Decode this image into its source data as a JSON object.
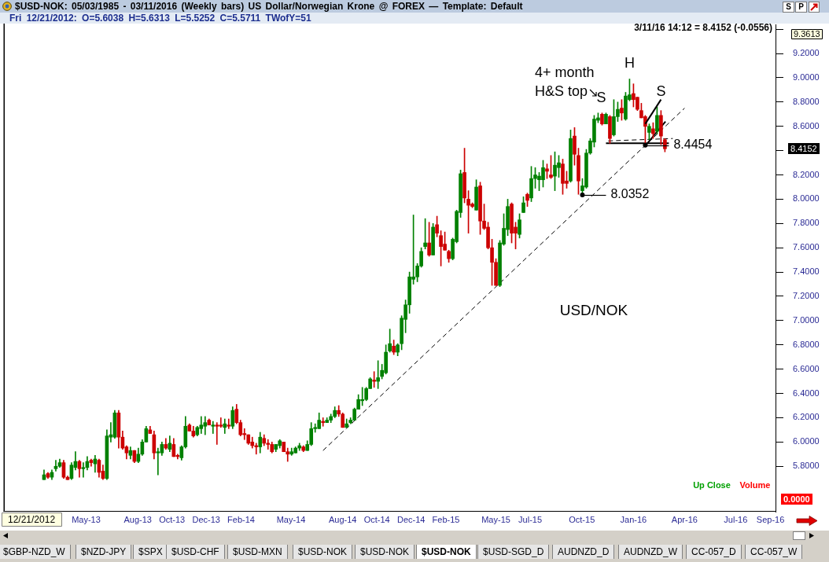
{
  "chart_data": [
    {
      "type": "candlestick",
      "title": "$USD-NOK: 05/03/1985 - 03/11/2016 (Weekly bars) US Dollar/Norwegian Krone @ FOREX — Template: Default",
      "subtitle": "Fri 12/21/2012: O=5.6038 H=5.6313 L=5.5252 C=5.5711 TWofY=51",
      "x": [
        "2013-03-01",
        "2013-03-08",
        "2013-03-15",
        "2013-03-22",
        "2013-03-29",
        "2013-04-05",
        "2013-04-12",
        "2013-04-19",
        "2013-04-26",
        "2013-05-03",
        "2013-05-10",
        "2013-05-17",
        "2013-05-24",
        "2013-05-31",
        "2013-06-07",
        "2013-06-14",
        "2013-06-21",
        "2013-06-28",
        "2013-07-05",
        "2013-07-12",
        "2013-07-19",
        "2013-07-26",
        "2013-08-02",
        "2013-08-09",
        "2013-08-16",
        "2013-08-23",
        "2013-08-30",
        "2013-09-06",
        "2013-09-13",
        "2013-09-20",
        "2013-09-27",
        "2013-10-04",
        "2013-10-11",
        "2013-10-18",
        "2013-10-25",
        "2013-11-01",
        "2013-11-08",
        "2013-11-15",
        "2013-11-22",
        "2013-11-29",
        "2013-12-06",
        "2013-12-13",
        "2013-12-20",
        "2013-12-27",
        "2014-01-03",
        "2014-01-10",
        "2014-01-17",
        "2014-01-24",
        "2014-01-31",
        "2014-02-07",
        "2014-02-14",
        "2014-02-21",
        "2014-02-28",
        "2014-03-07",
        "2014-03-14",
        "2014-03-21",
        "2014-03-28",
        "2014-04-04",
        "2014-04-11",
        "2014-04-18",
        "2014-04-25",
        "2014-05-02",
        "2014-05-09",
        "2014-05-16",
        "2014-05-23",
        "2014-05-30",
        "2014-06-06",
        "2014-06-13",
        "2014-06-20",
        "2014-06-27",
        "2014-07-04",
        "2014-07-11",
        "2014-07-18",
        "2014-07-25",
        "2014-08-01",
        "2014-08-08",
        "2014-08-15",
        "2014-08-22",
        "2014-08-29",
        "2014-09-05",
        "2014-09-12",
        "2014-09-19",
        "2014-09-26",
        "2014-10-03",
        "2014-10-10",
        "2014-10-17",
        "2014-10-24",
        "2014-10-31",
        "2014-11-07",
        "2014-11-14",
        "2014-11-21",
        "2014-11-28",
        "2014-12-05",
        "2014-12-12",
        "2014-12-19",
        "2014-12-26",
        "2015-01-02",
        "2015-01-09",
        "2015-01-16",
        "2015-01-23",
        "2015-01-30",
        "2015-02-06",
        "2015-02-13",
        "2015-02-20",
        "2015-02-27",
        "2015-03-06",
        "2015-03-13",
        "2015-03-20",
        "2015-03-27",
        "2015-04-03",
        "2015-04-10",
        "2015-04-17",
        "2015-04-24",
        "2015-05-01",
        "2015-05-08",
        "2015-05-15",
        "2015-05-22",
        "2015-05-29",
        "2015-06-05",
        "2015-06-12",
        "2015-06-19",
        "2015-06-26",
        "2015-07-03",
        "2015-07-10",
        "2015-07-17",
        "2015-07-24",
        "2015-07-31",
        "2015-08-07",
        "2015-08-14",
        "2015-08-21",
        "2015-08-28",
        "2015-09-04",
        "2015-09-11",
        "2015-09-18",
        "2015-09-25",
        "2015-10-02",
        "2015-10-09",
        "2015-10-16",
        "2015-10-23",
        "2015-10-30",
        "2015-11-06",
        "2015-11-13",
        "2015-11-20",
        "2015-11-27",
        "2015-12-04",
        "2015-12-11",
        "2015-12-18",
        "2015-12-25",
        "2016-01-01",
        "2016-01-08",
        "2016-01-15",
        "2016-01-22",
        "2016-01-29",
        "2016-02-05",
        "2016-02-12",
        "2016-02-19",
        "2016-02-26",
        "2016-03-04",
        "2016-03-11"
      ],
      "ohlc": [
        [
          5.69,
          5.77,
          5.69,
          5.73
        ],
        [
          5.74,
          5.75,
          5.7,
          5.71
        ],
        [
          5.71,
          5.77,
          5.69,
          5.75
        ],
        [
          5.78,
          5.85,
          5.76,
          5.8
        ],
        [
          5.8,
          5.86,
          5.79,
          5.83
        ],
        [
          5.83,
          5.85,
          5.7,
          5.71
        ],
        [
          5.71,
          5.72,
          5.69,
          5.69
        ],
        [
          5.7,
          5.83,
          5.69,
          5.81
        ],
        [
          5.79,
          5.92,
          5.77,
          5.84
        ],
        [
          5.84,
          5.85,
          5.71,
          5.78
        ],
        [
          5.78,
          5.83,
          5.71,
          5.79
        ],
        [
          5.79,
          5.88,
          5.77,
          5.84
        ],
        [
          5.85,
          5.86,
          5.8,
          5.83
        ],
        [
          5.82,
          5.89,
          5.75,
          5.86
        ],
        [
          5.85,
          5.86,
          5.71,
          5.75
        ],
        [
          5.76,
          5.81,
          5.69,
          5.7
        ],
        [
          5.7,
          6.1,
          5.69,
          6.05
        ],
        [
          6.04,
          6.16,
          6.0,
          6.06
        ],
        [
          6.04,
          6.26,
          6.03,
          6.24
        ],
        [
          6.24,
          6.26,
          5.95,
          6.04
        ],
        [
          6.04,
          6.09,
          5.94,
          5.95
        ],
        [
          5.96,
          5.97,
          5.86,
          5.91
        ],
        [
          5.89,
          5.96,
          5.86,
          5.93
        ],
        [
          5.93,
          5.93,
          5.83,
          5.84
        ],
        [
          5.84,
          5.95,
          5.83,
          5.9
        ],
        [
          5.9,
          6.02,
          5.89,
          6.0
        ],
        [
          6.0,
          6.13,
          6.0,
          6.11
        ],
        [
          6.1,
          6.13,
          6.07,
          6.07
        ],
        [
          6.06,
          6.09,
          5.86,
          5.91
        ],
        [
          5.91,
          5.95,
          5.73,
          5.92
        ],
        [
          5.91,
          6.0,
          5.89,
          5.98
        ],
        [
          5.98,
          6.03,
          5.94,
          5.95
        ],
        [
          5.94,
          6.05,
          5.92,
          5.99
        ],
        [
          5.98,
          6.03,
          5.88,
          5.88
        ],
        [
          5.89,
          5.9,
          5.86,
          5.88
        ],
        [
          5.87,
          5.97,
          5.85,
          5.96
        ],
        [
          5.96,
          6.21,
          5.95,
          6.13
        ],
        [
          6.14,
          6.15,
          6.09,
          6.09
        ],
        [
          6.09,
          6.13,
          6.04,
          6.05
        ],
        [
          6.06,
          6.13,
          6.05,
          6.12
        ],
        [
          6.11,
          6.21,
          6.07,
          6.14
        ],
        [
          6.13,
          6.21,
          6.06,
          6.16
        ],
        [
          6.18,
          6.19,
          6.14,
          6.14
        ],
        [
          6.13,
          6.17,
          6.07,
          6.14
        ],
        [
          6.14,
          6.16,
          5.98,
          6.13
        ],
        [
          6.14,
          6.2,
          6.12,
          6.13
        ],
        [
          6.12,
          6.19,
          6.07,
          6.15
        ],
        [
          6.14,
          6.19,
          6.11,
          6.13
        ],
        [
          6.13,
          6.29,
          6.11,
          6.26
        ],
        [
          6.27,
          6.31,
          6.15,
          6.16
        ],
        [
          6.16,
          6.18,
          6.05,
          6.06
        ],
        [
          6.07,
          6.11,
          6.02,
          6.06
        ],
        [
          6.06,
          6.06,
          5.98,
          5.99
        ],
        [
          6.0,
          6.04,
          5.95,
          5.97
        ],
        [
          5.97,
          5.99,
          5.9,
          5.96
        ],
        [
          5.96,
          6.08,
          5.91,
          6.04
        ],
        [
          6.03,
          6.06,
          5.97,
          5.99
        ],
        [
          5.99,
          6.02,
          5.94,
          5.98
        ],
        [
          5.98,
          6.0,
          5.91,
          5.92
        ],
        [
          5.94,
          5.98,
          5.92,
          5.98
        ],
        [
          5.97,
          6.02,
          5.95,
          6.01
        ],
        [
          6.0,
          6.0,
          5.92,
          5.92
        ],
        [
          5.92,
          5.95,
          5.84,
          5.9
        ],
        [
          5.9,
          5.95,
          5.89,
          5.92
        ],
        [
          5.91,
          5.96,
          5.91,
          5.95
        ],
        [
          5.95,
          5.99,
          5.93,
          5.97
        ],
        [
          5.96,
          5.97,
          5.92,
          5.93
        ],
        [
          5.93,
          6.01,
          5.93,
          5.98
        ],
        [
          5.98,
          6.16,
          5.97,
          6.11
        ],
        [
          6.11,
          6.15,
          6.08,
          6.12
        ],
        [
          6.11,
          6.24,
          6.11,
          6.18
        ],
        [
          6.17,
          6.2,
          6.13,
          6.16
        ],
        [
          6.16,
          6.2,
          6.16,
          6.18
        ],
        [
          6.18,
          6.23,
          6.16,
          6.21
        ],
        [
          6.21,
          6.29,
          6.2,
          6.26
        ],
        [
          6.26,
          6.3,
          6.21,
          6.23
        ],
        [
          6.23,
          6.24,
          6.12,
          6.12
        ],
        [
          6.12,
          6.19,
          6.12,
          6.15
        ],
        [
          6.16,
          6.2,
          6.15,
          6.18
        ],
        [
          6.18,
          6.28,
          6.18,
          6.27
        ],
        [
          6.27,
          6.39,
          6.27,
          6.35
        ],
        [
          6.34,
          6.45,
          6.3,
          6.35
        ],
        [
          6.35,
          6.45,
          6.34,
          6.44
        ],
        [
          6.44,
          6.53,
          6.44,
          6.52
        ],
        [
          6.51,
          6.58,
          6.45,
          6.5
        ],
        [
          6.5,
          6.67,
          6.44,
          6.53
        ],
        [
          6.54,
          6.64,
          6.52,
          6.59
        ],
        [
          6.57,
          6.8,
          6.56,
          6.74
        ],
        [
          6.75,
          6.93,
          6.74,
          6.81
        ],
        [
          6.79,
          6.84,
          6.72,
          6.74
        ],
        [
          6.74,
          6.81,
          6.71,
          6.8
        ],
        [
          6.81,
          7.04,
          6.76,
          7.02
        ],
        [
          7.01,
          7.17,
          6.9,
          7.13
        ],
        [
          7.13,
          7.4,
          7.06,
          7.36
        ],
        [
          7.34,
          7.87,
          7.3,
          7.36
        ],
        [
          7.36,
          7.47,
          7.32,
          7.45
        ],
        [
          7.45,
          7.6,
          7.44,
          7.57
        ],
        [
          7.61,
          7.84,
          7.59,
          7.64
        ],
        [
          7.64,
          7.81,
          7.53,
          7.54
        ],
        [
          7.54,
          7.8,
          7.54,
          7.77
        ],
        [
          7.79,
          7.86,
          7.69,
          7.72
        ],
        [
          7.7,
          7.74,
          7.45,
          7.61
        ],
        [
          7.63,
          7.73,
          7.58,
          7.58
        ],
        [
          7.57,
          7.58,
          7.48,
          7.51
        ],
        [
          7.51,
          7.68,
          7.5,
          7.67
        ],
        [
          7.65,
          7.91,
          7.64,
          7.9
        ],
        [
          7.89,
          8.24,
          7.85,
          8.21
        ],
        [
          8.22,
          8.42,
          7.97,
          8.01
        ],
        [
          8.0,
          8.07,
          7.72,
          7.95
        ],
        [
          7.96,
          7.97,
          7.93,
          7.94
        ],
        [
          7.91,
          8.16,
          7.91,
          8.1
        ],
        [
          8.11,
          8.14,
          7.71,
          7.82
        ],
        [
          7.82,
          7.96,
          7.75,
          7.76
        ],
        [
          7.77,
          7.81,
          7.59,
          7.6
        ],
        [
          7.6,
          7.67,
          7.29,
          7.48
        ],
        [
          7.48,
          7.51,
          7.29,
          7.29
        ],
        [
          7.29,
          7.66,
          7.28,
          7.64
        ],
        [
          7.63,
          7.88,
          7.62,
          7.76
        ],
        [
          7.75,
          8.0,
          7.7,
          7.94
        ],
        [
          7.96,
          7.97,
          7.64,
          7.72
        ],
        [
          7.77,
          7.81,
          7.59,
          7.72
        ],
        [
          7.71,
          7.88,
          7.68,
          7.83
        ],
        [
          7.89,
          8.02,
          7.89,
          7.97
        ],
        [
          8.04,
          8.05,
          7.94,
          7.99
        ],
        [
          8.01,
          8.27,
          7.98,
          8.17
        ],
        [
          8.17,
          8.26,
          8.09,
          8.2
        ],
        [
          8.16,
          8.22,
          8.07,
          8.19
        ],
        [
          8.16,
          8.32,
          8.1,
          8.26
        ],
        [
          8.25,
          8.29,
          8.17,
          8.23
        ],
        [
          8.2,
          8.36,
          8.17,
          8.18
        ],
        [
          8.19,
          8.39,
          8.07,
          8.28
        ],
        [
          8.26,
          8.36,
          8.18,
          8.3
        ],
        [
          8.29,
          8.33,
          8.04,
          8.13
        ],
        [
          8.15,
          8.23,
          8.09,
          8.13
        ],
        [
          8.15,
          8.57,
          8.14,
          8.5
        ],
        [
          8.52,
          8.59,
          8.28,
          8.37
        ],
        [
          8.36,
          8.42,
          8.04,
          8.15
        ],
        [
          8.07,
          8.17,
          8.0352,
          8.11
        ],
        [
          8.1,
          8.41,
          8.09,
          8.38
        ],
        [
          8.38,
          8.5,
          8.37,
          8.48
        ],
        [
          8.47,
          8.69,
          8.43,
          8.66
        ],
        [
          8.65,
          8.71,
          8.63,
          8.67
        ],
        [
          8.7,
          8.71,
          8.61,
          8.62
        ],
        [
          8.62,
          8.71,
          8.62,
          8.7
        ],
        [
          8.68,
          8.69,
          8.46,
          8.5
        ],
        [
          8.53,
          8.82,
          8.52,
          8.68
        ],
        [
          8.68,
          8.8,
          8.64,
          8.74
        ],
        [
          8.75,
          8.82,
          8.65,
          8.71
        ],
        [
          8.66,
          8.88,
          8.65,
          8.85
        ],
        [
          8.82,
          8.99,
          8.81,
          8.86
        ],
        [
          8.87,
          8.95,
          8.76,
          8.82
        ],
        [
          8.84,
          8.84,
          8.73,
          8.74
        ],
        [
          8.73,
          8.79,
          8.67,
          8.67
        ],
        [
          8.68,
          8.69,
          8.4454,
          8.6
        ],
        [
          8.55,
          8.62,
          8.49,
          8.6
        ],
        [
          8.58,
          8.63,
          8.5,
          8.54
        ],
        [
          8.56,
          8.76,
          8.54,
          8.69
        ],
        [
          8.69,
          8.73,
          8.45,
          8.52
        ],
        [
          8.49,
          8.5,
          8.39,
          8.4152
        ]
      ],
      "colors": [
        "#008000",
        "#cc0000",
        "#008000",
        "#008000",
        "#008000",
        "#cc0000",
        "#cc0000",
        "#008000",
        "#008000",
        "#cc0000",
        "#008000",
        "#008000",
        "#cc0000",
        "#008000",
        "#cc0000",
        "#cc0000",
        "#008000",
        "#008000",
        "#008000",
        "#cc0000",
        "#cc0000",
        "#cc0000",
        "#008000",
        "#cc0000",
        "#008000",
        "#008000",
        "#008000",
        "#cc0000",
        "#cc0000",
        "#008000",
        "#008000",
        "#cc0000",
        "#008000",
        "#cc0000",
        "#cc0000",
        "#008000",
        "#008000",
        "#cc0000",
        "#cc0000",
        "#008000",
        "#008000",
        "#008000",
        "#cc0000",
        "#008000",
        "#cc0000",
        "#cc0000",
        "#008000",
        "#cc0000",
        "#008000",
        "#cc0000",
        "#cc0000",
        "#cc0000",
        "#cc0000",
        "#cc0000",
        "#cc0000",
        "#008000",
        "#cc0000",
        "#cc0000",
        "#cc0000",
        "#008000",
        "#008000",
        "#cc0000",
        "#cc0000",
        "#008000",
        "#008000",
        "#008000",
        "#cc0000",
        "#008000",
        "#008000",
        "#008000",
        "#008000",
        "#cc0000",
        "#008000",
        "#008000",
        "#008000",
        "#cc0000",
        "#cc0000",
        "#008000",
        "#008000",
        "#008000",
        "#008000",
        "#008000",
        "#008000",
        "#008000",
        "#cc0000",
        "#008000",
        "#008000",
        "#008000",
        "#008000",
        "#cc0000",
        "#008000",
        "#008000",
        "#008000",
        "#008000",
        "#008000",
        "#008000",
        "#008000",
        "#008000",
        "#cc0000",
        "#008000",
        "#cc0000",
        "#cc0000",
        "#cc0000",
        "#cc0000",
        "#008000",
        "#008000",
        "#008000",
        "#cc0000",
        "#cc0000",
        "#cc0000",
        "#008000",
        "#cc0000",
        "#cc0000",
        "#cc0000",
        "#cc0000",
        "#cc0000",
        "#008000",
        "#008000",
        "#008000",
        "#cc0000",
        "#cc0000",
        "#008000",
        "#008000",
        "#cc0000",
        "#008000",
        "#008000",
        "#008000",
        "#008000",
        "#cc0000",
        "#cc0000",
        "#008000",
        "#008000",
        "#cc0000",
        "#cc0000",
        "#008000",
        "#cc0000",
        "#cc0000",
        "#008000",
        "#008000",
        "#008000",
        "#008000",
        "#008000",
        "#cc0000",
        "#008000",
        "#cc0000",
        "#008000",
        "#008000",
        "#cc0000",
        "#008000",
        "#008000",
        "#cc0000",
        "#cc0000",
        "#cc0000",
        "#cc0000",
        "#008000",
        "#cc0000",
        "#008000",
        "#cc0000",
        "#cc0000"
      ],
      "series": [
        {
          "type": "line",
          "x": [
            "2014-07-11",
            "2016-04-15"
          ],
          "values": [
            5.93,
            8.75
          ],
          "color": "#000000",
          "line_style": "dashed"
        },
        {
          "type": "line",
          "x": [
            "2015-11-27",
            "2016-03-18"
          ],
          "values": [
            8.46,
            8.46
          ],
          "color": "#000000",
          "line_style": "solid"
        },
        {
          "type": "line",
          "x": [
            "2015-12-01",
            "2016-03-25"
          ],
          "values": [
            8.48,
            8.5
          ],
          "color": "#000000",
          "line_style": "dashed"
        },
        {
          "type": "line",
          "x": [
            "2016-02-07",
            "2016-03-12"
          ],
          "values": [
            8.45,
            8.64
          ],
          "color": "#000000",
          "line_style": "solid"
        }
      ],
      "xlim": [
        "2012-12-21",
        "2016-09-24"
      ],
      "ylim": [
        5.685,
        9.44
      ],
      "xticks": [
        {
          "value": "2013-05-15",
          "label": "May-13"
        },
        {
          "value": "2013-08-15",
          "label": "Aug-13"
        },
        {
          "value": "2013-10-15",
          "label": "Oct-13"
        },
        {
          "value": "2013-12-15",
          "label": "Dec-13"
        },
        {
          "value": "2014-02-15",
          "label": "Feb-14"
        },
        {
          "value": "2014-05-15",
          "label": "May-14"
        },
        {
          "value": "2014-08-15",
          "label": "Aug-14"
        },
        {
          "value": "2014-10-15",
          "label": "Oct-14"
        },
        {
          "value": "2014-12-15",
          "label": "Dec-14"
        },
        {
          "value": "2015-02-15",
          "label": "Feb-15"
        },
        {
          "value": "2015-05-15",
          "label": "May-15"
        },
        {
          "value": "2015-07-15",
          "label": "Jul-15"
        },
        {
          "value": "2015-10-15",
          "label": "Oct-15"
        },
        {
          "value": "2016-01-15",
          "label": "Jan-16"
        },
        {
          "value": "2016-04-15",
          "label": "Apr-16"
        },
        {
          "value": "2016-07-15",
          "label": "Jul-16"
        },
        {
          "value": "2016-09-15",
          "label": "Sep-16"
        }
      ],
      "yticks": [
        {
          "value": 5.8,
          "label": "5.8000"
        },
        {
          "value": 6.0,
          "label": "6.0000"
        },
        {
          "value": 6.2,
          "label": "6.2000"
        },
        {
          "value": 6.4,
          "label": "6.4000"
        },
        {
          "value": 6.6,
          "label": "6.6000"
        },
        {
          "value": 6.8,
          "label": "6.8000"
        },
        {
          "value": 7.0,
          "label": "7.0000"
        },
        {
          "value": 7.2,
          "label": "7.2000"
        },
        {
          "value": 7.4,
          "label": "7.4000"
        },
        {
          "value": 7.6,
          "label": "7.6000"
        },
        {
          "value": 7.8,
          "label": "7.8000"
        },
        {
          "value": 8.0,
          "label": "8.0000"
        },
        {
          "value": 8.2,
          "label": "8.2000"
        },
        {
          "value": 8.4,
          "label": null
        },
        {
          "value": 8.6,
          "label": "8.6000"
        },
        {
          "value": 8.8,
          "label": "8.8000"
        },
        {
          "value": 9.0,
          "label": "9.0000"
        },
        {
          "value": 9.2,
          "label": "9.2000"
        },
        {
          "value": 9.4,
          "label": null
        }
      ],
      "annotations": [
        "3/11/16 14:12 = 8.4152 (-0.0556)",
        "9.3613",
        "8.4152",
        "4+ month H&S top",
        {
          "text": "S",
          "x": "2015-11-20",
          "y": 8.71
        },
        {
          "text": "H",
          "x": "2016-01-08",
          "y": 8.99
        },
        {
          "text": "S",
          "x": "2016-02-05",
          "y": 8.62
        },
        {
          "text": "8.4454",
          "x": "2016-02-05",
          "y": 8.4454
        },
        {
          "text": "8.0352",
          "x": "2015-10-16",
          "y": 8.0352
        },
        "USD/NOK",
        "S",
        "P",
        "12/21/2012",
        "$GBP-NZD_W",
        "$NZD-JPY",
        "$SPX",
        "$USD-CHF",
        "$USD-MXN",
        "$USD-NOK",
        "$USD-NOK",
        "$USD-NOK",
        "$USD-SGD_D",
        "AUDNZD_D",
        "AUDNZD_W",
        "CC-057_D",
        "CC-057_W"
      ]
    },
    {
      "type": "other",
      "annotations": [
        "Up Close",
        "Volume",
        "0.0000"
      ]
    }
  ]
}
